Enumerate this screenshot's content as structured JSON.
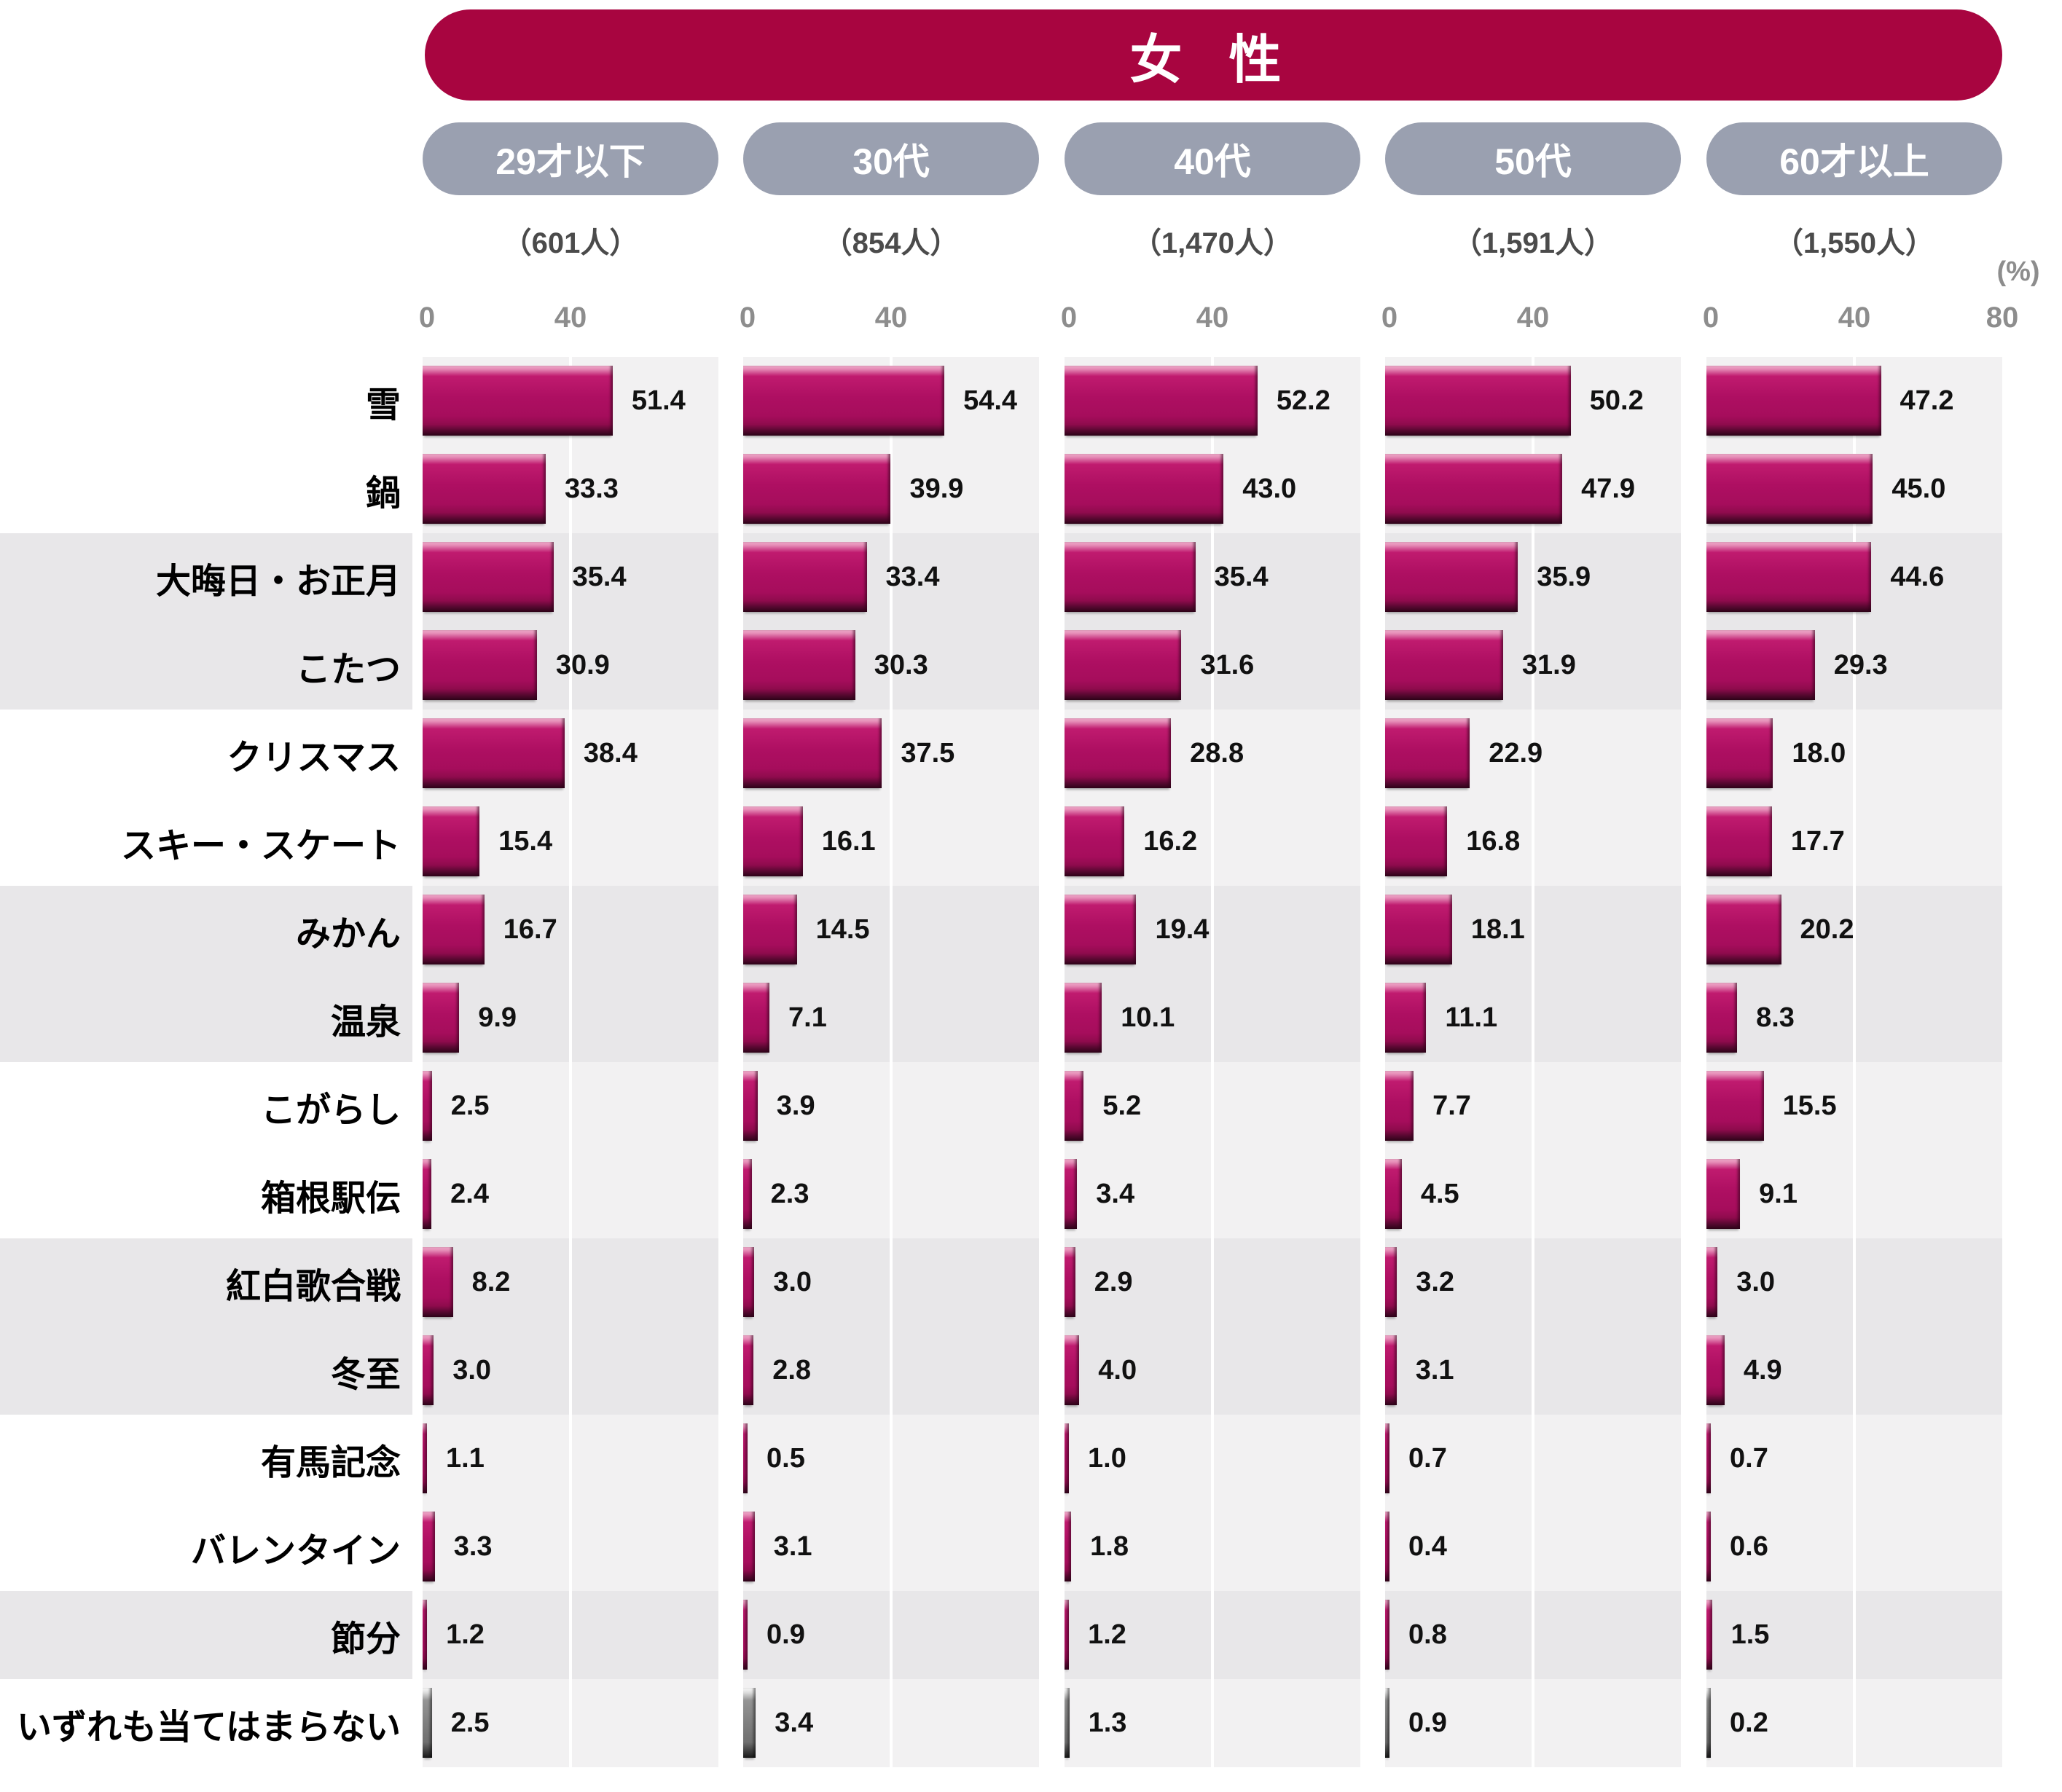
{
  "chart_data": {
    "type": "bar",
    "orientation": "horizontal",
    "title": "女 性",
    "unit_label": "(%)",
    "x_axis": {
      "min": 0,
      "max": 80,
      "ticks": [
        0,
        40
      ],
      "last_column_end_tick": 80
    },
    "grid": "single white gridline at 40 per column",
    "legend_position": "none",
    "groups": [
      {
        "label": "29才以下",
        "count": "（601人）"
      },
      {
        "label": "30代",
        "count": "（854人）"
      },
      {
        "label": "40代",
        "count": "（1,470人）"
      },
      {
        "label": "50代",
        "count": "（1,591人）"
      },
      {
        "label": "60才以上",
        "count": "（1,550人）"
      }
    ],
    "rows": [
      {
        "label": "雪",
        "values": [
          "51.4",
          "54.4",
          "52.2",
          "50.2",
          "47.2"
        ],
        "shaded": false,
        "gray_bar": false
      },
      {
        "label": "鍋",
        "values": [
          "33.3",
          "39.9",
          "43.0",
          "47.9",
          "45.0"
        ],
        "shaded": false,
        "gray_bar": false
      },
      {
        "label": "大晦日・お正月",
        "values": [
          "35.4",
          "33.4",
          "35.4",
          "35.9",
          "44.6"
        ],
        "shaded": true,
        "gray_bar": false
      },
      {
        "label": "こたつ",
        "values": [
          "30.9",
          "30.3",
          "31.6",
          "31.9",
          "29.3"
        ],
        "shaded": true,
        "gray_bar": false
      },
      {
        "label": "クリスマス",
        "values": [
          "38.4",
          "37.5",
          "28.8",
          "22.9",
          "18.0"
        ],
        "shaded": false,
        "gray_bar": false
      },
      {
        "label": "スキー・スケート",
        "values": [
          "15.4",
          "16.1",
          "16.2",
          "16.8",
          "17.7"
        ],
        "shaded": false,
        "gray_bar": false
      },
      {
        "label": "みかん",
        "values": [
          "16.7",
          "14.5",
          "19.4",
          "18.1",
          "20.2"
        ],
        "shaded": true,
        "gray_bar": false
      },
      {
        "label": "温泉",
        "values": [
          "9.9",
          "7.1",
          "10.1",
          "11.1",
          "8.3"
        ],
        "shaded": true,
        "gray_bar": false
      },
      {
        "label": "こがらし",
        "values": [
          "2.5",
          "3.9",
          "5.2",
          "7.7",
          "15.5"
        ],
        "shaded": false,
        "gray_bar": false
      },
      {
        "label": "箱根駅伝",
        "values": [
          "2.4",
          "2.3",
          "3.4",
          "4.5",
          "9.1"
        ],
        "shaded": false,
        "gray_bar": false
      },
      {
        "label": "紅白歌合戦",
        "values": [
          "8.2",
          "3.0",
          "2.9",
          "3.2",
          "3.0"
        ],
        "shaded": true,
        "gray_bar": false
      },
      {
        "label": "冬至",
        "values": [
          "3.0",
          "2.8",
          "4.0",
          "3.1",
          "4.9"
        ],
        "shaded": true,
        "gray_bar": false
      },
      {
        "label": "有馬記念",
        "values": [
          "1.1",
          "0.5",
          "1.0",
          "0.7",
          "0.7"
        ],
        "shaded": false,
        "gray_bar": false
      },
      {
        "label": "バレンタイン",
        "values": [
          "3.3",
          "3.1",
          "1.8",
          "0.4",
          "0.6"
        ],
        "shaded": false,
        "gray_bar": false
      },
      {
        "label": "節分",
        "values": [
          "1.2",
          "0.9",
          "1.2",
          "0.8",
          "1.5"
        ],
        "shaded": true,
        "gray_bar": false
      },
      {
        "label": "いずれも当てはまらない",
        "values": [
          "2.5",
          "3.4",
          "1.3",
          "0.9",
          "0.2"
        ],
        "shaded": false,
        "gray_bar": true
      }
    ]
  },
  "colors": {
    "header_bg": "#a80540",
    "pill_bg": "#9aa0b0",
    "bar_main": "#ae0f62",
    "bar_top_highlight": "#f2aecd",
    "bar_bottom_dark": "#2e0419",
    "gray_bar_main": "#7f7f7f",
    "panel_light": "#f2f1f2",
    "panel_shaded": "#e8e7e9",
    "grid_line": "#ffffff",
    "tick_text": "#8d8d8d",
    "count_text": "#4b4b4b",
    "label_text": "#000000",
    "value_text": "#111111"
  }
}
